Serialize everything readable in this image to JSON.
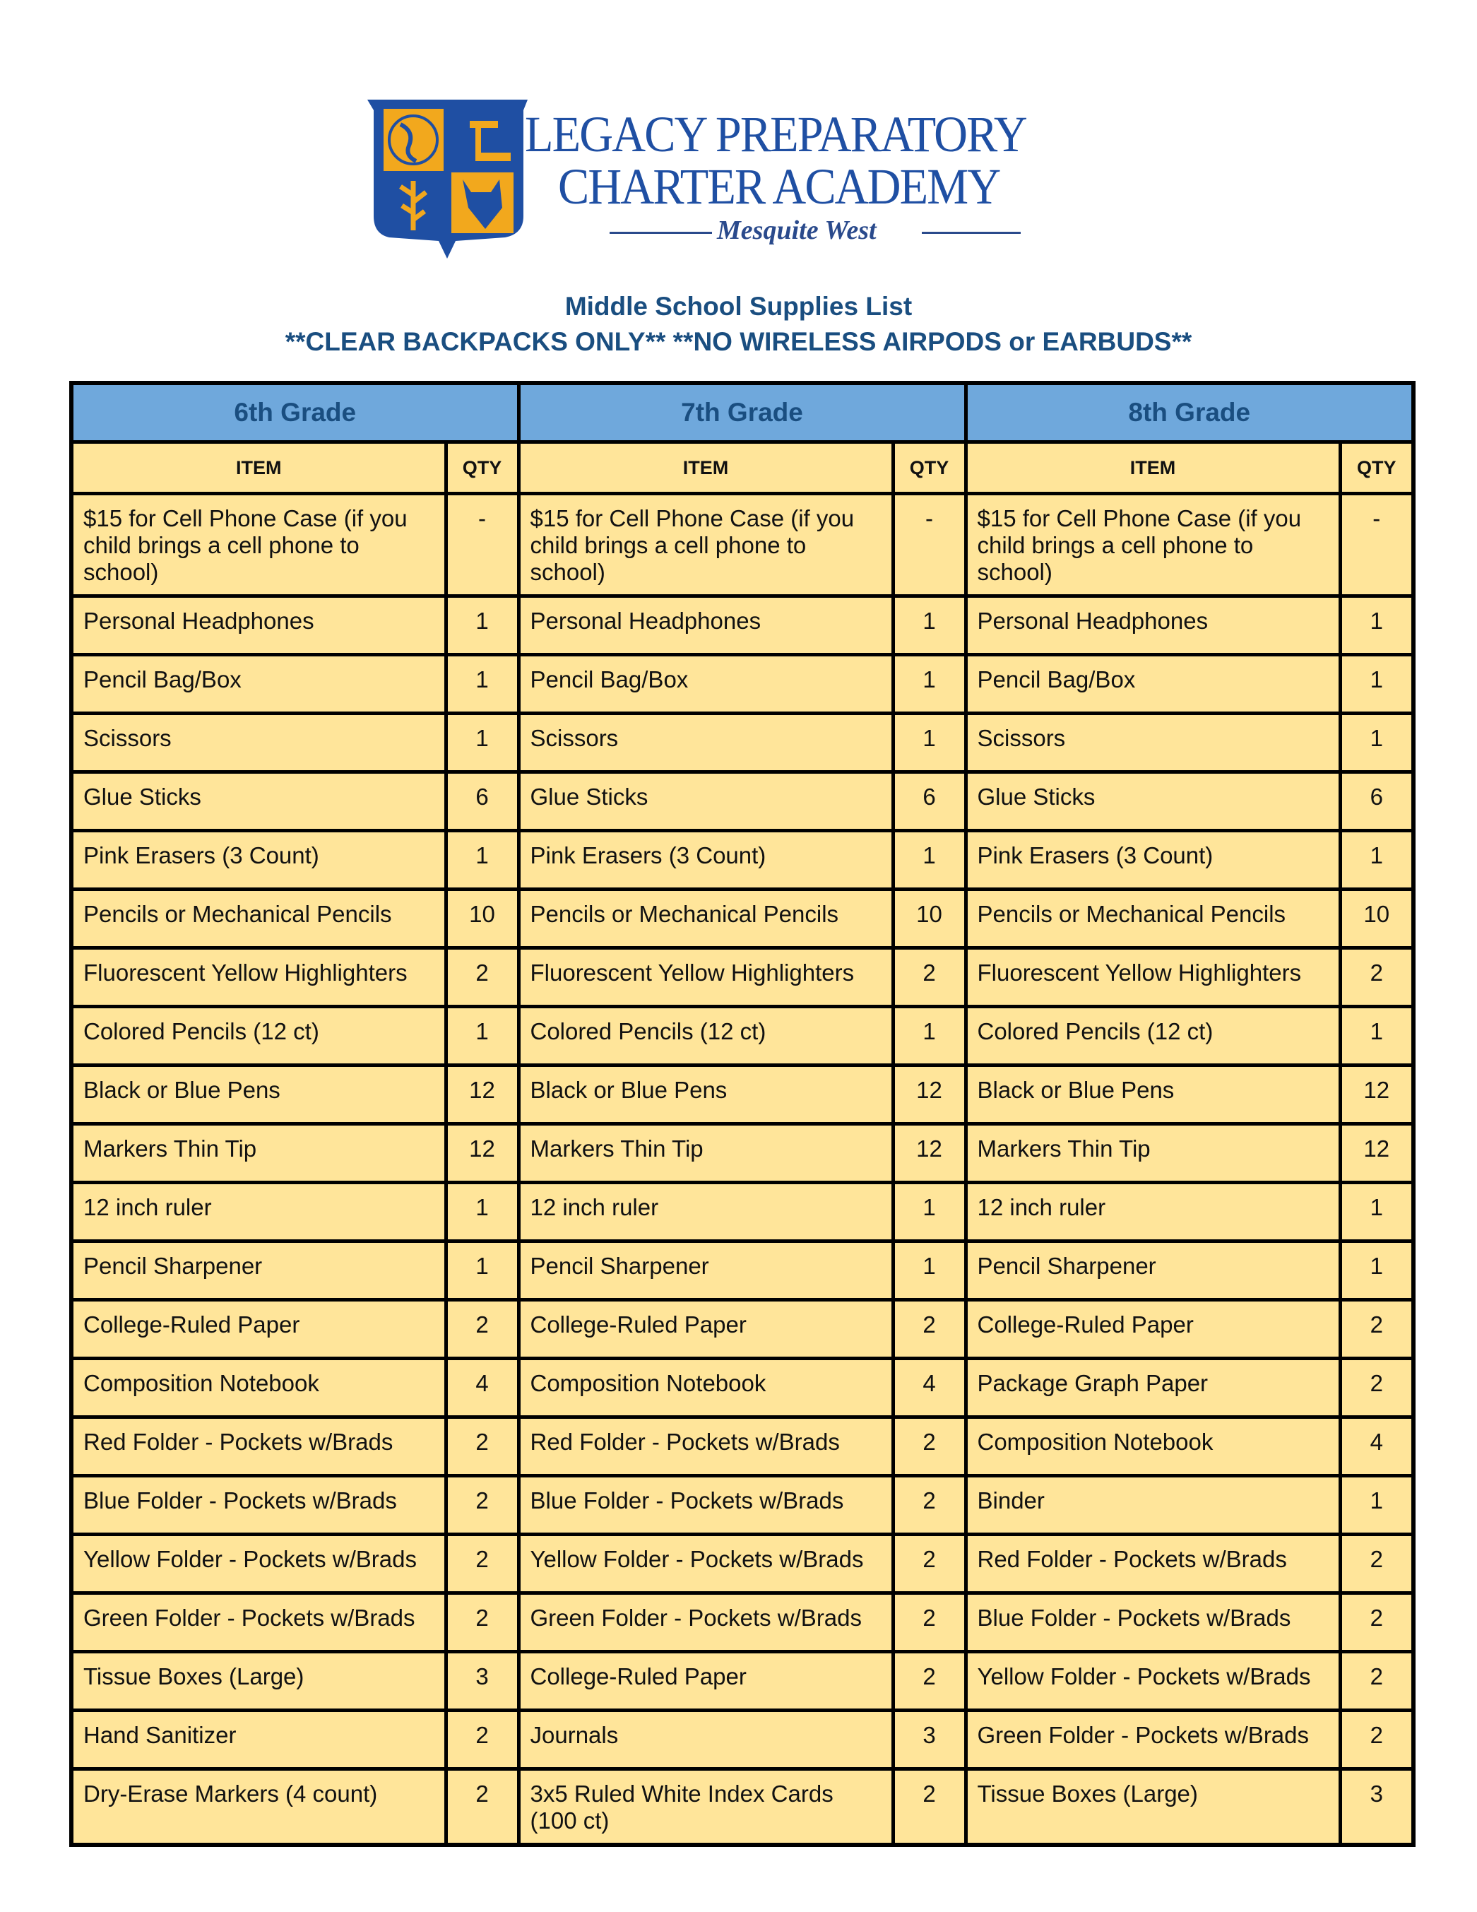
{
  "logo": {
    "line1": "LEGACY PREPARATORY",
    "line2": "CHARTER ACADEMY",
    "line3": "Mesquite West",
    "colors": {
      "blue": "#1f4fa3",
      "gold": "#f2a81d"
    }
  },
  "header": {
    "title": "Middle School Supplies List",
    "notice": "**CLEAR BACKPACKS ONLY**  **NO WIRELESS AIRPODS or EARBUDS**"
  },
  "table": {
    "grades": [
      "6th Grade",
      "7th Grade",
      "8th Grade"
    ],
    "item_header": "ITEM",
    "qty_header": "QTY",
    "colors": {
      "grade_header": "#6fa8dc",
      "cell": "#ffe59a",
      "title": "#1a4e80"
    },
    "rows": [
      [
        [
          "$15 for Cell Phone Case (if you child brings a cell phone to school)",
          "-"
        ],
        [
          "$15 for Cell Phone Case (if you child brings a cell phone to school)",
          "-"
        ],
        [
          "$15 for Cell Phone Case (if you child brings a cell phone to school)",
          "-"
        ]
      ],
      [
        [
          "Personal Headphones",
          "1"
        ],
        [
          "Personal Headphones",
          "1"
        ],
        [
          "Personal Headphones",
          "1"
        ]
      ],
      [
        [
          "Pencil Bag/Box",
          "1"
        ],
        [
          "Pencil Bag/Box",
          "1"
        ],
        [
          "Pencil Bag/Box",
          "1"
        ]
      ],
      [
        [
          "Scissors",
          "1"
        ],
        [
          "Scissors",
          "1"
        ],
        [
          "Scissors",
          "1"
        ]
      ],
      [
        [
          "Glue Sticks",
          "6"
        ],
        [
          "Glue Sticks",
          "6"
        ],
        [
          "Glue Sticks",
          "6"
        ]
      ],
      [
        [
          "Pink Erasers (3 Count)",
          "1"
        ],
        [
          "Pink Erasers (3 Count)",
          "1"
        ],
        [
          "Pink Erasers (3 Count)",
          "1"
        ]
      ],
      [
        [
          "Pencils or Mechanical Pencils",
          "10"
        ],
        [
          "Pencils or Mechanical Pencils",
          "10"
        ],
        [
          "Pencils or Mechanical Pencils",
          "10"
        ]
      ],
      [
        [
          "Fluorescent Yellow Highlighters",
          "2"
        ],
        [
          "Fluorescent Yellow Highlighters",
          "2"
        ],
        [
          "Fluorescent Yellow Highlighters",
          "2"
        ]
      ],
      [
        [
          "Colored Pencils (12 ct)",
          "1"
        ],
        [
          "Colored Pencils (12 ct)",
          "1"
        ],
        [
          "Colored Pencils (12 ct)",
          "1"
        ]
      ],
      [
        [
          "Black or Blue Pens",
          "12"
        ],
        [
          "Black or Blue Pens",
          "12"
        ],
        [
          "Black or Blue Pens",
          "12"
        ]
      ],
      [
        [
          "Markers Thin Tip",
          "12"
        ],
        [
          "Markers Thin Tip",
          "12"
        ],
        [
          "Markers Thin Tip",
          "12"
        ]
      ],
      [
        [
          "12 inch ruler",
          "1"
        ],
        [
          "12 inch ruler",
          "1"
        ],
        [
          "12 inch ruler",
          "1"
        ]
      ],
      [
        [
          "Pencil Sharpener",
          "1"
        ],
        [
          "Pencil Sharpener",
          "1"
        ],
        [
          "Pencil Sharpener",
          "1"
        ]
      ],
      [
        [
          "College-Ruled Paper",
          "2"
        ],
        [
          "College-Ruled Paper",
          "2"
        ],
        [
          "College-Ruled Paper",
          "2"
        ]
      ],
      [
        [
          "Composition Notebook",
          "4"
        ],
        [
          "Composition Notebook",
          "4"
        ],
        [
          "Package Graph Paper",
          "2"
        ]
      ],
      [
        [
          "Red Folder - Pockets w/Brads",
          "2"
        ],
        [
          "Red Folder - Pockets w/Brads",
          "2"
        ],
        [
          "Composition Notebook",
          "4"
        ]
      ],
      [
        [
          "Blue Folder - Pockets w/Brads",
          "2"
        ],
        [
          "Blue Folder - Pockets w/Brads",
          "2"
        ],
        [
          "Binder",
          "1"
        ]
      ],
      [
        [
          "Yellow Folder - Pockets w/Brads",
          "2"
        ],
        [
          "Yellow Folder - Pockets w/Brads",
          "2"
        ],
        [
          "Red Folder - Pockets w/Brads",
          "2"
        ]
      ],
      [
        [
          "Green Folder - Pockets w/Brads",
          "2"
        ],
        [
          "Green Folder - Pockets w/Brads",
          "2"
        ],
        [
          "Blue Folder - Pockets w/Brads",
          "2"
        ]
      ],
      [
        [
          "Tissue Boxes (Large)",
          "3"
        ],
        [
          "College-Ruled Paper",
          "2"
        ],
        [
          "Yellow Folder - Pockets w/Brads",
          "2"
        ]
      ],
      [
        [
          "Hand Sanitizer",
          "2"
        ],
        [
          "Journals",
          "3"
        ],
        [
          "Green Folder - Pockets w/Brads",
          "2"
        ]
      ],
      [
        [
          "Dry-Erase Markers (4 count)",
          "2"
        ],
        [
          "3x5 Ruled White Index Cards (100 ct)",
          "2"
        ],
        [
          "Tissue Boxes (Large)",
          "3"
        ]
      ]
    ]
  }
}
